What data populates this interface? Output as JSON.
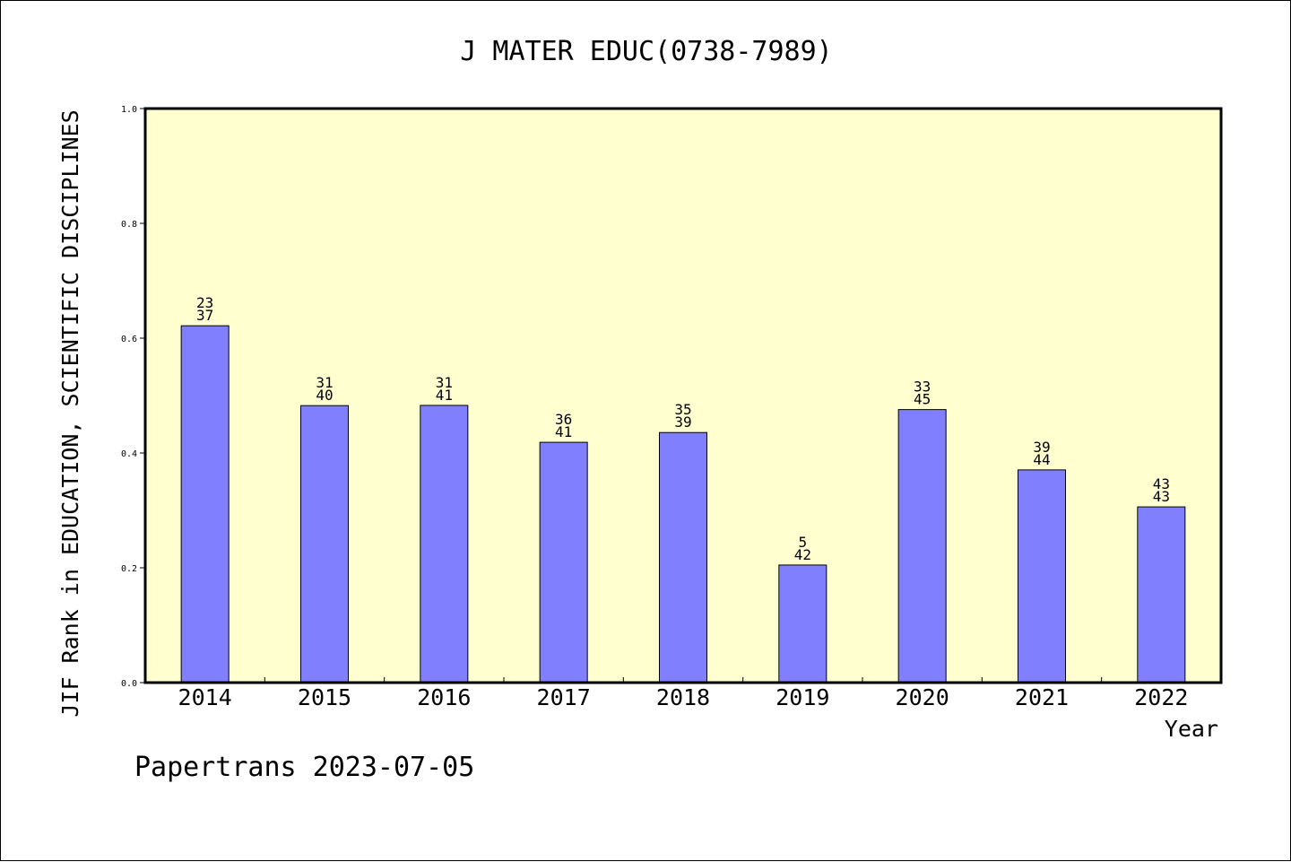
{
  "chart_data": {
    "type": "bar",
    "title": "J MATER EDUC(0738-7989)",
    "xlabel": "Year",
    "ylabel": "JIF Rank in EDUCATION, SCIENTIFIC DISCIPLINES",
    "ylim": [
      0,
      1
    ],
    "yticks": [
      "0.0",
      "0.2",
      "0.4",
      "0.6",
      "0.8",
      "1.0"
    ],
    "categories": [
      "2014",
      "2015",
      "2016",
      "2017",
      "2018",
      "2019",
      "2020",
      "2021",
      "2022"
    ],
    "values": [
      0.6216,
      0.4825,
      0.4829,
      0.4186,
      0.4356,
      0.2048,
      0.4756,
      0.3705,
      0.3061
    ],
    "rank_labels": [
      "23",
      "31",
      "31",
      "36",
      "35",
      "5",
      "33",
      "39",
      "43"
    ],
    "total_labels": [
      "37",
      "40",
      "41",
      "41",
      "39",
      "42",
      "45",
      "44",
      "43"
    ],
    "grid": false,
    "legend": "none",
    "colors": {
      "plot_bg": "#ffffd0",
      "bar": "#8080ff"
    }
  },
  "footer": "Papertrans 2023-07-05"
}
